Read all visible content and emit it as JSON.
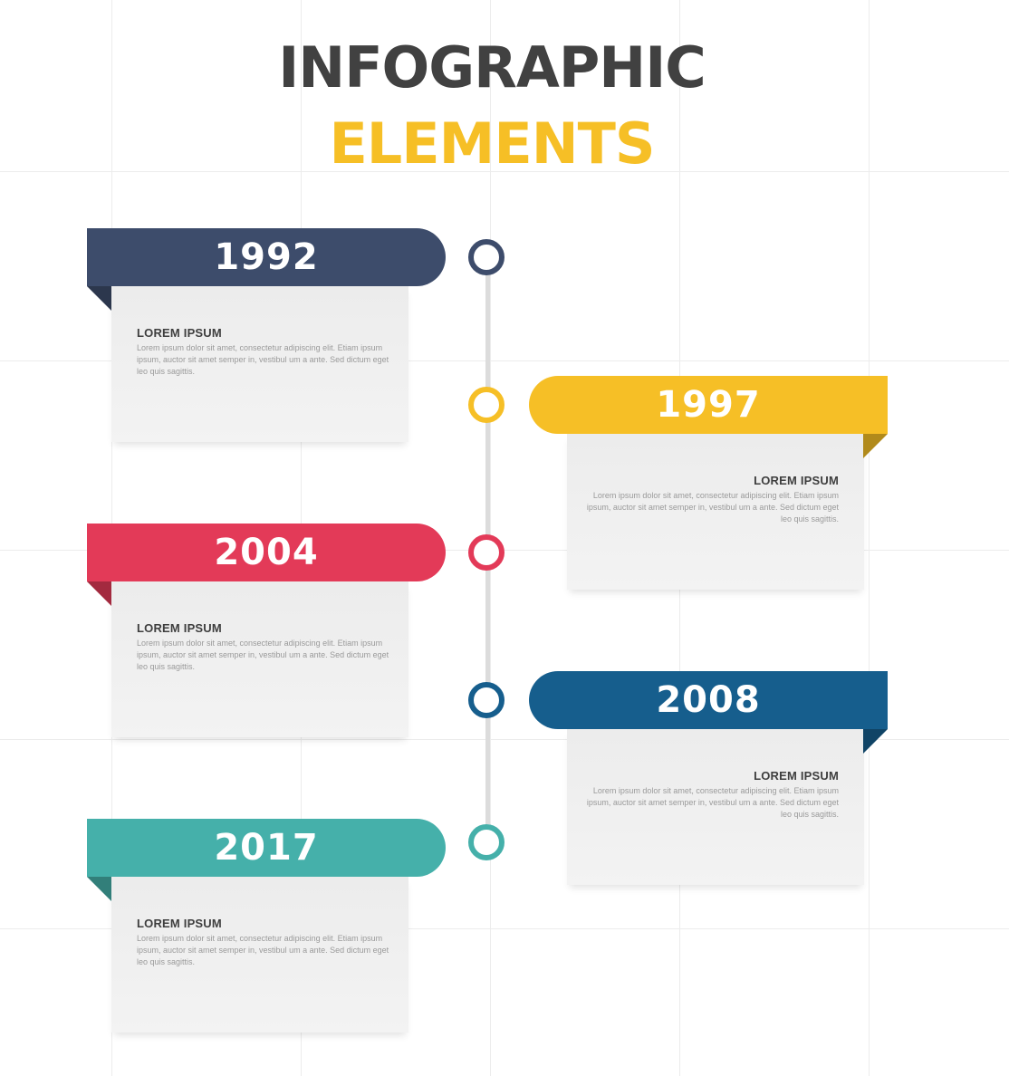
{
  "title": {
    "line1": "INFOGRAPHIC",
    "line2": "ELEMENTS"
  },
  "colors": {
    "navy": "#3d4c6b",
    "yellow": "#f6bf26",
    "red": "#e33a58",
    "blue": "#165e8d",
    "teal": "#45b0aa",
    "title_dark": "#414141"
  },
  "events": [
    {
      "year": "1992",
      "side": "left",
      "color": "#3d4c6b",
      "heading": "LOREM IPSUM",
      "text": "Lorem ipsum dolor sit amet, consectetur adipiscing elit. Etiam ipsum ipsum, auctor sit amet semper in, vestibul um a ante. Sed dictum eget leo quis sagittis."
    },
    {
      "year": "1997",
      "side": "right",
      "color": "#f6bf26",
      "heading": "LOREM IPSUM",
      "text": "Lorem ipsum dolor sit amet, consectetur adipiscing elit. Etiam ipsum ipsum, auctor sit amet semper in, vestibul um a ante. Sed dictum eget leo quis sagittis."
    },
    {
      "year": "2004",
      "side": "left",
      "color": "#e33a58",
      "heading": "LOREM IPSUM",
      "text": "Lorem ipsum dolor sit amet, consectetur adipiscing elit. Etiam ipsum ipsum, auctor sit amet semper in, vestibul um a ante. Sed dictum eget leo quis sagittis."
    },
    {
      "year": "2008",
      "side": "right",
      "color": "#165e8d",
      "heading": "LOREM IPSUM",
      "text": "Lorem ipsum dolor sit amet, consectetur adipiscing elit. Etiam ipsum ipsum, auctor sit amet semper in, vestibul um a ante. Sed dictum eget leo quis sagittis."
    },
    {
      "year": "2017",
      "side": "left",
      "color": "#45b0aa",
      "heading": "LOREM IPSUM",
      "text": "Lorem ipsum dolor sit amet, consectetur adipiscing elit. Etiam ipsum ipsum, auctor sit amet semper in, vestibul um a ante. Sed dictum eget leo quis sagittis."
    }
  ]
}
